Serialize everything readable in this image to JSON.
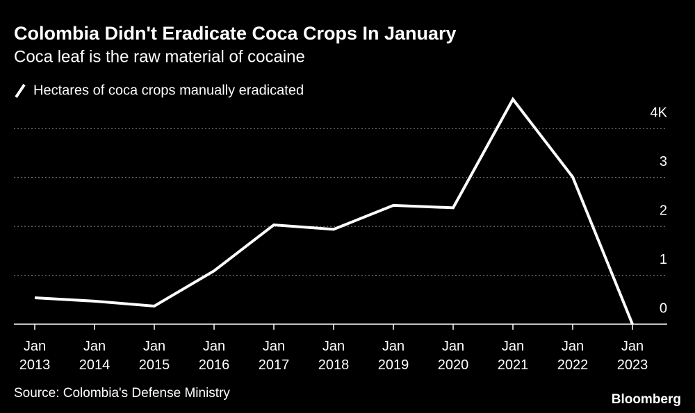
{
  "chart_data": {
    "type": "line",
    "title": "Colombia Didn't Eradicate Coca Crops In January",
    "subtitle": "Coca leaf is the raw material of cocaine",
    "source": "Source: Colombia's Defense Ministry",
    "brand": "Bloomberg",
    "categories": [
      "Jan 2013",
      "Jan 2014",
      "Jan 2015",
      "Jan 2016",
      "Jan 2017",
      "Jan 2018",
      "Jan 2019",
      "Jan 2020",
      "Jan 2021",
      "Jan 2022",
      "Jan 2023"
    ],
    "series": [
      {
        "name": "Hectares of coca crops manually eradicated",
        "color": "#ffffff",
        "values": [
          0.54,
          0.47,
          0.37,
          1.09,
          2.03,
          1.94,
          2.43,
          2.38,
          4.6,
          3.01,
          0
        ]
      }
    ],
    "ylim": [
      0,
      4.6
    ],
    "yticks": [
      0,
      1,
      2,
      3,
      {
        "value": 4,
        "label": "4K"
      }
    ],
    "grid": true
  }
}
